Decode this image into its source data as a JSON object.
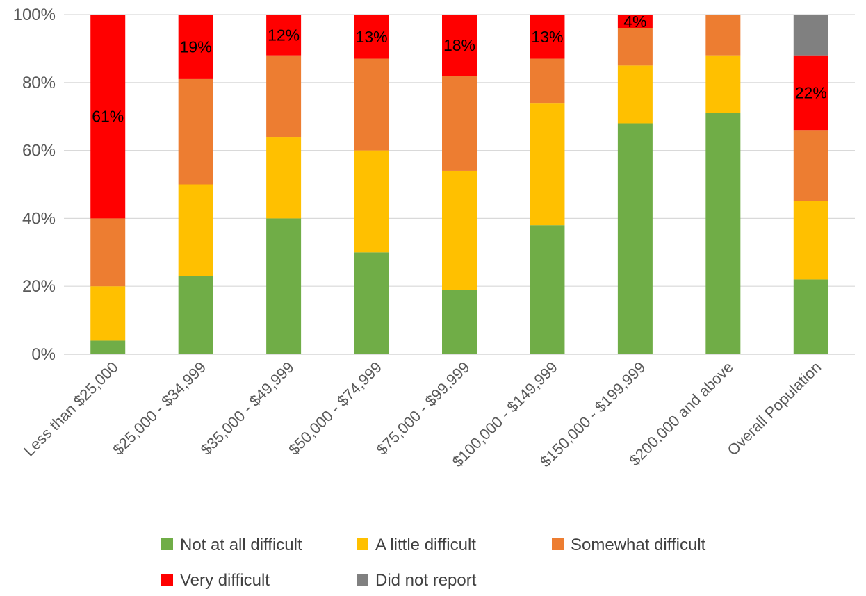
{
  "chart_data": {
    "type": "bar",
    "stacked": true,
    "percent_stacked": true,
    "categories": [
      "Less than $25,000",
      "$25,000 - $34,999",
      "$35,000 - $49,999",
      "$50,000 - $74,999",
      "$75,000 - $99,999",
      "$100,000 - $149,999",
      "$150,000 - $199,999",
      "$200,000 and above",
      "Overall Population"
    ],
    "series": [
      {
        "name": "Not at all difficult",
        "color": "#70AD47",
        "values": [
          4,
          23,
          40,
          30,
          19,
          38,
          68,
          71,
          22
        ]
      },
      {
        "name": "A little difficult",
        "color": "#FFC000",
        "values": [
          16,
          27,
          24,
          30,
          35,
          36,
          17,
          17,
          23
        ]
      },
      {
        "name": "Somewhat difficult",
        "color": "#ED7D31",
        "values": [
          20,
          31,
          24,
          27,
          28,
          13,
          11,
          12,
          21
        ]
      },
      {
        "name": "Very difficult",
        "color": "#FF0000",
        "values": [
          61,
          19,
          12,
          13,
          18,
          13,
          4,
          0,
          22
        ],
        "data_labels": [
          "61%",
          "19%",
          "12%",
          "13%",
          "18%",
          "13%",
          "4%",
          "",
          "22%"
        ]
      },
      {
        "name": "Did not report",
        "color": "#808080",
        "values": [
          0,
          0,
          0,
          0,
          0,
          0,
          0,
          0,
          12
        ]
      }
    ],
    "yticks": [
      "0%",
      "20%",
      "40%",
      "60%",
      "80%",
      "100%"
    ],
    "ylim": [
      0,
      100
    ],
    "grid": true,
    "legend_position": "bottom",
    "title": "",
    "xlabel": "",
    "ylabel": ""
  }
}
